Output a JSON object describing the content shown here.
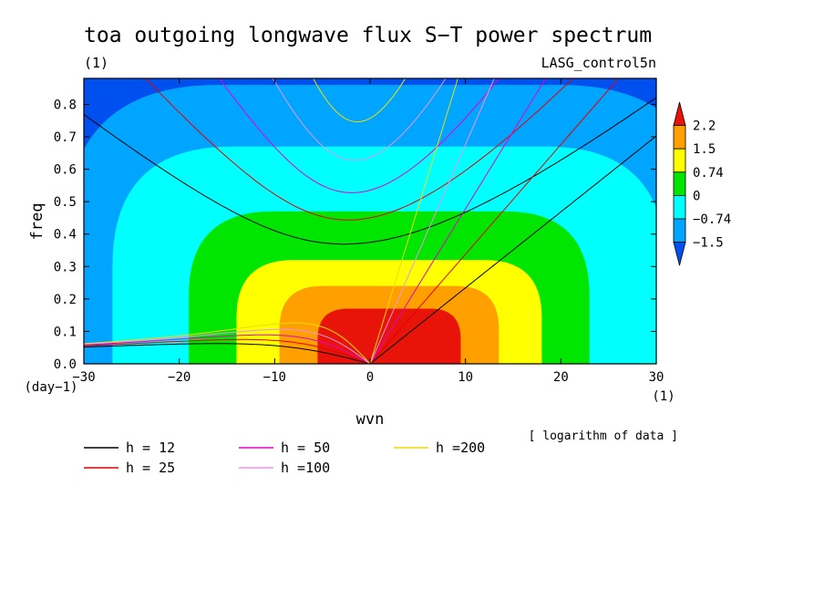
{
  "chart_data": {
    "type": "heatmap",
    "title": "toa outgoing longwave flux S−T power spectrum",
    "subtitle_left": "(1)",
    "subtitle_right": "LASG_control5n",
    "xlabel": "wvn",
    "ylabel": "freq",
    "x_unit": "(1)",
    "y_unit": "(day−1)",
    "xlim": [
      -30,
      30
    ],
    "ylim": [
      0,
      0.88
    ],
    "x_ticks": [
      -30,
      -20,
      -10,
      0,
      10,
      20,
      30
    ],
    "x_tick_labels": [
      "−30",
      "−20",
      "−10",
      "0",
      "10",
      "20",
      "30"
    ],
    "y_ticks": [
      0,
      0.1,
      0.2,
      0.3,
      0.4,
      0.5,
      0.6,
      0.7,
      0.8
    ],
    "y_tick_labels": [
      "0.0",
      "0.1",
      "0.2",
      "0.3",
      "0.4",
      "0.5",
      "0.6",
      "0.7",
      "0.8"
    ],
    "colorbar": {
      "note": "[ logarithm of data ]",
      "levels": [
        2.2,
        1.5,
        0.74,
        0,
        -0.74,
        -1.5
      ],
      "level_labels": [
        "2.2",
        "1.5",
        "0.74",
        "0",
        "−0.74",
        "−1.5"
      ],
      "colors": [
        "#e8140a",
        "#ffa000",
        "#ffff00",
        "#00e600",
        "#00ffff",
        "#00a5ff",
        "#0050f0"
      ]
    },
    "field": {
      "center": [
        2,
        0.07
      ],
      "value_at_center": 2.6,
      "level_contours": [
        {
          "value": 2.2,
          "half_width_wavenumber": 7.5,
          "height_freq": 0.17
        },
        {
          "value": 1.5,
          "half_width_wavenumber": 11.5,
          "height_freq": 0.24
        },
        {
          "value": 0.74,
          "half_width_wavenumber": 16,
          "height_freq": 0.32
        },
        {
          "value": 0,
          "half_width_wavenumber": 21,
          "height_freq": 0.47
        },
        {
          "value": -0.74,
          "half_width_wavenumber": 29,
          "height_freq": 0.67
        },
        {
          "value": -1.5,
          "half_width_wavenumber": 34,
          "height_freq": 0.86
        }
      ]
    },
    "dispersion_curves": {
      "equivalent_depths": [
        12,
        25,
        50,
        100,
        200
      ],
      "colors": [
        "#000000",
        "#e60000",
        "#e600c8",
        "#e696e6",
        "#f0dc00"
      ],
      "legend_labels": [
        "h = 12",
        "h = 25",
        "h = 50",
        "h =100",
        "h =200"
      ]
    }
  }
}
